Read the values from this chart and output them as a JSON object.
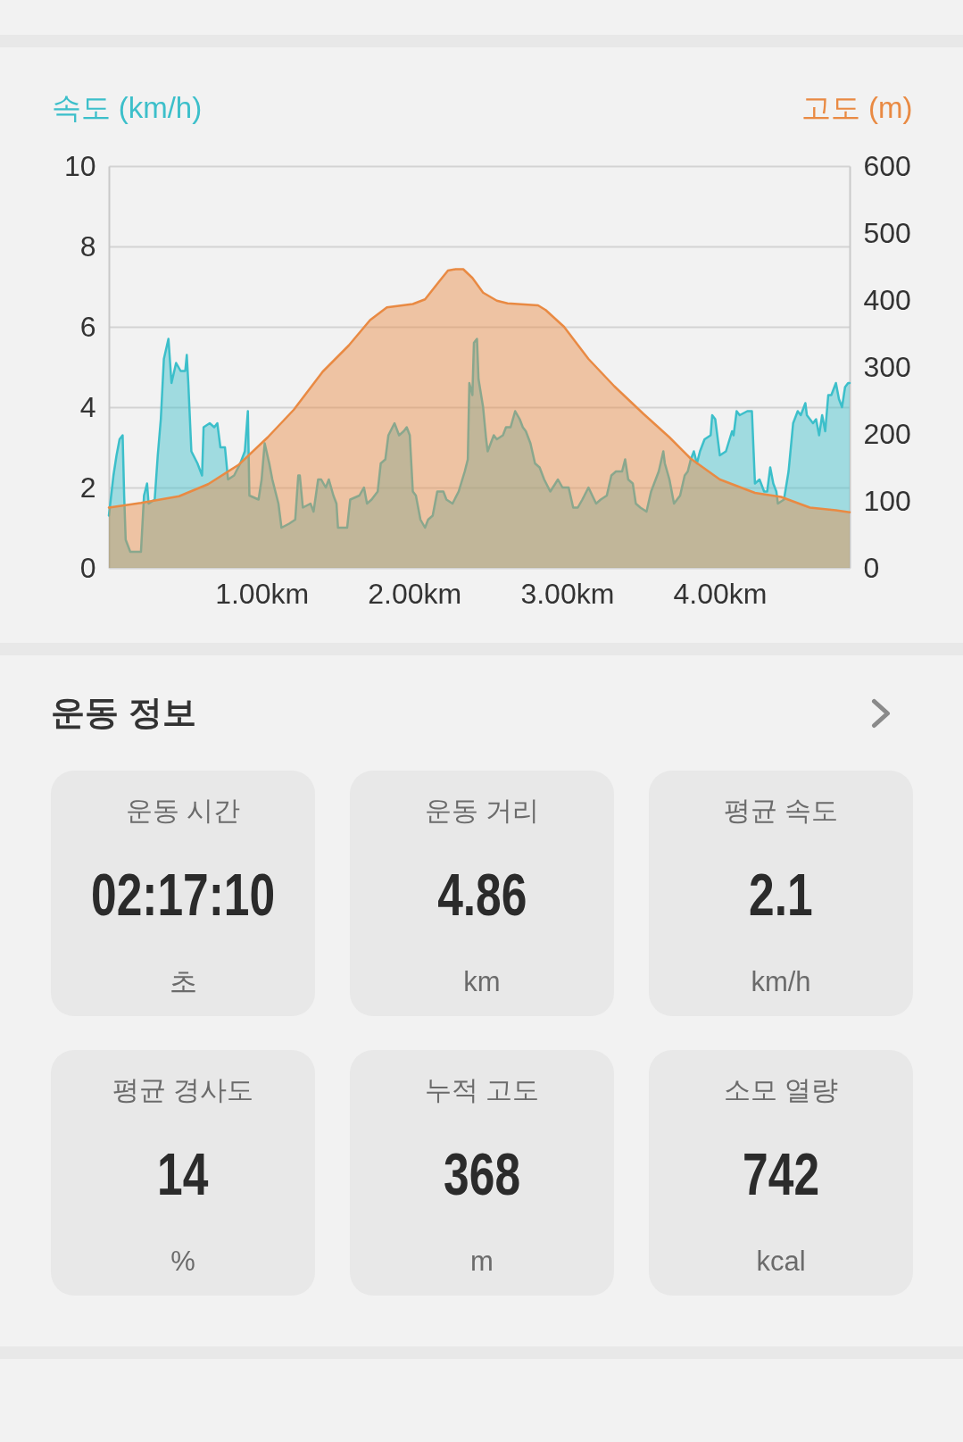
{
  "chart_data": [
    {
      "type": "area",
      "ylabel": "속도 (km/h)",
      "y2label": "고도 (m)",
      "xlim": [
        0,
        4.85
      ],
      "xticks": [
        {
          "value": 1,
          "label": "1.00km"
        },
        {
          "value": 2,
          "label": "2.00km"
        },
        {
          "value": 3,
          "label": "3.00km"
        },
        {
          "value": 4,
          "label": "4.00km"
        }
      ],
      "ylim": [
        0,
        10
      ],
      "yticks": [
        0,
        2,
        4,
        6,
        8,
        10
      ],
      "y2lim": [
        0,
        600
      ],
      "y2ticks": [
        0,
        100,
        200,
        300,
        400,
        500,
        600
      ],
      "grid": "y",
      "series": [
        {
          "color": "#3cbfca",
          "x": [
            0,
            0.03,
            0.05,
            0.07,
            0.09,
            0.1,
            0.11,
            0.14,
            0.21,
            0.23,
            0.25,
            0.26,
            0.3,
            0.32,
            0.34,
            0.36,
            0.39,
            0.41,
            0.44,
            0.47,
            0.5,
            0.51,
            0.52,
            0.54,
            0.58,
            0.61,
            0.62,
            0.66,
            0.69,
            0.71,
            0.73,
            0.76,
            0.78,
            0.82,
            0.86,
            0.89,
            0.91,
            0.92,
            0.98,
            1,
            1.02,
            1.05,
            1.07,
            1.11,
            1.13,
            1.18,
            1.22,
            1.24,
            1.25,
            1.27,
            1.32,
            1.34,
            1.37,
            1.39,
            1.42,
            1.44,
            1.47,
            1.49,
            1.5,
            1.56,
            1.58,
            1.64,
            1.67,
            1.69,
            1.72,
            1.76,
            1.78,
            1.81,
            1.83,
            1.87,
            1.9,
            1.93,
            1.95,
            1.97,
            1.99,
            2.01,
            2.04,
            2.07,
            2.09,
            2.12,
            2.15,
            2.19,
            2.21,
            2.25,
            2.29,
            2.33,
            2.35,
            2.36,
            2.38,
            2.39,
            2.41,
            2.42,
            2.45,
            2.47,
            2.48,
            2.52,
            2.54,
            2.58,
            2.6,
            2.63,
            2.66,
            2.69,
            2.71,
            2.73,
            2.76,
            2.79,
            2.82,
            2.85,
            2.89,
            2.94,
            2.97,
            3.01,
            3.04,
            3.07,
            3.1,
            3.14,
            3.19,
            3.22,
            3.26,
            3.29,
            3.32,
            3.36,
            3.38,
            3.4,
            3.43,
            3.45,
            3.48,
            3.52,
            3.55,
            3.6,
            3.63,
            3.64,
            3.67,
            3.7,
            3.74,
            3.77,
            3.79,
            3.81,
            3.83,
            3.85,
            3.87,
            3.9,
            3.94,
            3.95,
            3.97,
            4,
            4.04,
            4.08,
            4.09,
            4.11,
            4.13,
            4.18,
            4.21,
            4.23,
            4.26,
            4.29,
            4.31,
            4.33,
            4.35,
            4.37,
            4.38,
            4.42,
            4.45,
            4.48,
            4.51,
            4.53,
            4.56,
            4.57,
            4.61,
            4.63,
            4.65,
            4.67,
            4.69,
            4.71,
            4.73,
            4.76,
            4.78,
            4.8,
            4.82,
            4.84,
            4.85
          ],
          "values": [
            1.3,
            2.3,
            2.8,
            3.2,
            3.3,
            1.8,
            0.7,
            0.4,
            0.4,
            1.8,
            2.1,
            1.6,
            1.7,
            2.8,
            3.7,
            5.2,
            5.7,
            4.6,
            5.1,
            4.9,
            4.9,
            5.3,
            4.6,
            2.9,
            2.6,
            2.3,
            3.5,
            3.6,
            3.5,
            3.6,
            3.0,
            3.0,
            2.2,
            2.3,
            2.6,
            2.9,
            3.9,
            1.8,
            1.7,
            2.2,
            3.1,
            2.6,
            2.2,
            1.6,
            1.0,
            1.1,
            1.2,
            2.3,
            2.3,
            1.5,
            1.6,
            1.4,
            2.2,
            2.2,
            2.0,
            2.2,
            1.8,
            1.6,
            1.0,
            1.0,
            1.7,
            1.8,
            2.0,
            1.6,
            1.7,
            1.9,
            2.6,
            2.7,
            3.3,
            3.6,
            3.3,
            3.4,
            3.5,
            3.3,
            1.9,
            1.8,
            1.2,
            1.0,
            1.2,
            1.3,
            1.9,
            1.9,
            1.7,
            1.6,
            1.9,
            2.4,
            2.7,
            4.6,
            4.3,
            5.6,
            5.7,
            4.7,
            4.0,
            3.2,
            2.9,
            3.3,
            3.2,
            3.3,
            3.5,
            3.5,
            3.9,
            3.7,
            3.5,
            3.4,
            3.1,
            2.6,
            2.5,
            2.2,
            1.9,
            2.2,
            2.0,
            2.0,
            1.5,
            1.5,
            1.7,
            2.0,
            1.6,
            1.7,
            1.8,
            2.3,
            2.4,
            2.4,
            2.7,
            2.2,
            2.1,
            1.6,
            1.5,
            1.4,
            1.9,
            2.4,
            2.9,
            2.6,
            2.2,
            1.6,
            1.8,
            2.3,
            2.4,
            2.7,
            2.9,
            2.6,
            2.9,
            3.2,
            3.3,
            3.8,
            3.7,
            2.8,
            2.9,
            3.4,
            3.3,
            3.9,
            3.8,
            3.9,
            3.9,
            2.1,
            2.2,
            1.9,
            1.9,
            2.5,
            2.1,
            1.9,
            1.6,
            1.7,
            2.4,
            3.6,
            3.9,
            3.8,
            4.1,
            3.8,
            3.6,
            3.7,
            3.3,
            3.8,
            3.4,
            4.3,
            4.3,
            4.6,
            4.2,
            4.0,
            4.5,
            4.6,
            4.6
          ]
        },
        {
          "color": "#e98a43",
          "axis": "y2",
          "x": [
            0,
            0.21,
            0.46,
            0.65,
            0.85,
            1.04,
            1.21,
            1.4,
            1.57,
            1.71,
            1.82,
            1.99,
            2.07,
            2.16,
            2.22,
            2.27,
            2.32,
            2.38,
            2.45,
            2.54,
            2.61,
            2.81,
            2.86,
            2.98,
            3.14,
            3.31,
            3.5,
            3.67,
            3.81,
            4.0,
            4.23,
            4.4,
            4.59,
            4.76,
            4.85
          ],
          "values": [
            90,
            97,
            107,
            125,
            154,
            195,
            236,
            293,
            332,
            370,
            389,
            394,
            401,
            427,
            444,
            446,
            446,
            433,
            411,
            399,
            395,
            392,
            385,
            360,
            312,
            271,
            230,
            195,
            163,
            132,
            112,
            106,
            90,
            86,
            83
          ]
        }
      ]
    },
    {
      "type": "other",
      "title": "운동 정보",
      "annotations": [
        "운동 시간",
        "02:17:10",
        "초",
        "운동 거리",
        "4.86",
        "km",
        "평균 속도",
        "2.1",
        "km/h",
        "평균 경사도",
        "14",
        "%",
        "누적 고도",
        "368",
        "m",
        "소모 열량",
        "742",
        "kcal"
      ]
    }
  ]
}
